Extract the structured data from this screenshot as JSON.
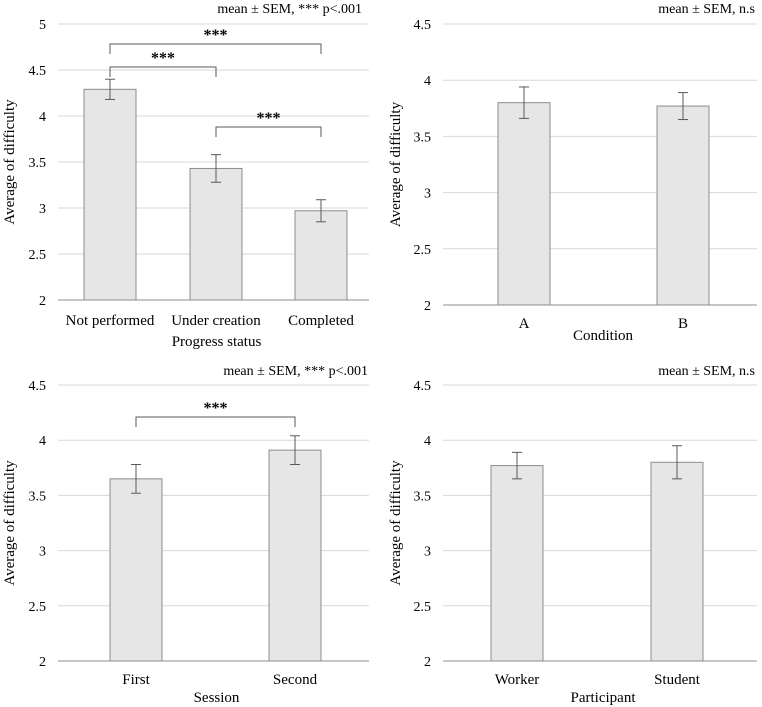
{
  "colors": {
    "bar_fill": "#e6e6e6",
    "bar_stroke": "#8c8c8c",
    "grid": "#d9d9d9",
    "axis": "#8c8c8c",
    "errorbar": "#595959"
  },
  "chart_data": [
    {
      "type": "bar",
      "annotation": "mean ± SEM, *** p<.001",
      "xlabel": "Progress status",
      "ylabel": "Average of difficulty",
      "ylim": [
        2,
        5
      ],
      "yticks": [
        "2",
        "2.5",
        "3",
        "3.5",
        "4",
        "4.5",
        "5"
      ],
      "categories": [
        "Not performed",
        "Under creation",
        "Completed"
      ],
      "values": [
        4.29,
        3.43,
        2.97
      ],
      "errors": [
        0.11,
        0.15,
        0.12
      ],
      "significance": [
        {
          "from": 0,
          "to": 1,
          "label": "***"
        },
        {
          "from": 0,
          "to": 2,
          "label": "***"
        },
        {
          "from": 1,
          "to": 2,
          "label": "***"
        }
      ]
    },
    {
      "type": "bar",
      "annotation": "mean ± SEM, n.s",
      "xlabel": "Condition",
      "ylabel": "Average of difficulty",
      "ylim": [
        2,
        4.5
      ],
      "yticks": [
        "2",
        "2.5",
        "3",
        "3.5",
        "4",
        "4.5"
      ],
      "categories": [
        "A",
        "B"
      ],
      "values": [
        3.8,
        3.77
      ],
      "errors": [
        0.14,
        0.12
      ],
      "significance": []
    },
    {
      "type": "bar",
      "annotation": "mean ± SEM, *** p<.001",
      "xlabel": "Session",
      "ylabel": "Average of difficulty",
      "ylim": [
        2,
        4.5
      ],
      "yticks": [
        "2",
        "2.5",
        "3",
        "3.5",
        "4",
        "4.5"
      ],
      "categories": [
        "First",
        "Second"
      ],
      "values": [
        3.65,
        3.91
      ],
      "errors": [
        0.13,
        0.13
      ],
      "significance": [
        {
          "from": 0,
          "to": 1,
          "label": "***"
        }
      ]
    },
    {
      "type": "bar",
      "annotation": "mean ± SEM, n.s",
      "xlabel": "Participant",
      "ylabel": "Average of difficulty",
      "ylim": [
        2,
        4.5
      ],
      "yticks": [
        "2",
        "2.5",
        "3",
        "3.5",
        "4",
        "4.5"
      ],
      "categories": [
        "Worker",
        "Student"
      ],
      "values": [
        3.77,
        3.8
      ],
      "errors": [
        0.12,
        0.15
      ],
      "significance": []
    }
  ]
}
